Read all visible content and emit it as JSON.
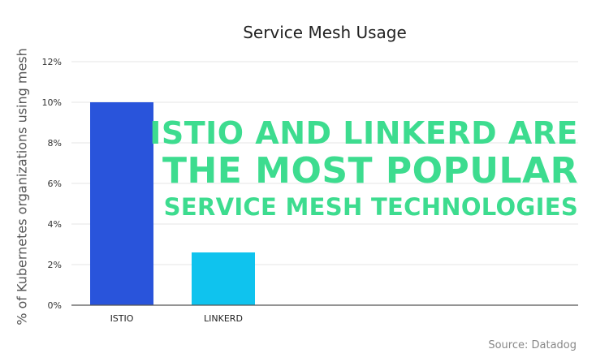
{
  "chart_data": {
    "type": "bar",
    "title": "Service Mesh Usage",
    "ylabel": "% of Kubernetes organizations using mesh",
    "xlabel": "",
    "categories": [
      "ISTIO",
      "LINKERD"
    ],
    "values": [
      10,
      2.6
    ],
    "ylim": [
      0,
      12
    ],
    "yticks": [
      "0%",
      "2%",
      "4%",
      "6%",
      "8%",
      "10%",
      "12%"
    ],
    "bar_colors": [
      "#2954db",
      "#0fc3ee"
    ],
    "grid": true,
    "annotation": [
      "ISTIO AND LINKERD ARE",
      "THE MOST POPULAR",
      "SERVICE MESH TECHNOLOGIES"
    ],
    "source": "Source: Datadog"
  },
  "colors": {
    "annotation": "#3ddc8f",
    "gridline": "#e6e6e6",
    "axis": "#555555"
  }
}
